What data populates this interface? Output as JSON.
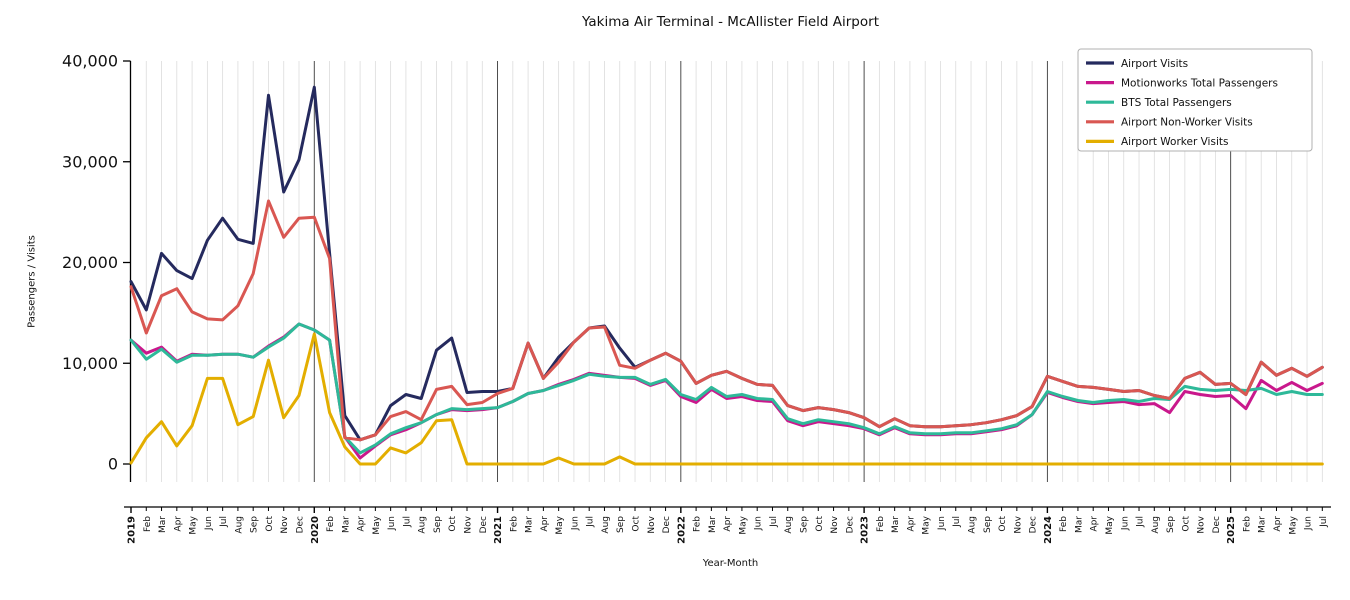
{
  "title": "Yakima Air Terminal - McAllister Field Airport",
  "xlabel": "Year-Month",
  "ylabel": "Passengers / Visits",
  "axis_color": "#000000",
  "grid_color": "#dcdcdc",
  "year_line_color": "#3a3a3a",
  "legend": {
    "position": "top-right",
    "border_color": "#b0b0b0",
    "background": "#ffffff"
  },
  "chart_data": {
    "type": "line",
    "title": "Yakima Air Terminal - McAllister Field Airport",
    "xlabel": "Year-Month",
    "ylabel": "Passengers / Visits",
    "ylim": [
      0,
      40000
    ],
    "grid": "vertical monthly gridlines, darker line at each January",
    "legend_position": "top-right",
    "y_ticks": [
      0,
      10000,
      20000,
      30000,
      40000
    ],
    "y_tick_labels": [
      "0",
      "10,000",
      "20,000",
      "30,000",
      "40,000"
    ],
    "x_labels": [
      "2019",
      "Feb",
      "Mar",
      "Apr",
      "May",
      "Jun",
      "Jul",
      "Aug",
      "Sep",
      "Oct",
      "Nov",
      "Dec",
      "2020",
      "Feb",
      "Mar",
      "Apr",
      "May",
      "Jun",
      "Jul",
      "Aug",
      "Sep",
      "Oct",
      "Nov",
      "Dec",
      "2021",
      "Feb",
      "Mar",
      "Apr",
      "May",
      "Jun",
      "Jul",
      "Aug",
      "Sep",
      "Oct",
      "Nov",
      "Dec",
      "2022",
      "Feb",
      "Mar",
      "Apr",
      "May",
      "Jun",
      "Jul",
      "Aug",
      "Sep",
      "Oct",
      "Nov",
      "Dec",
      "2023",
      "Feb",
      "Mar",
      "Apr",
      "May",
      "Jun",
      "Jul",
      "Aug",
      "Sep",
      "Oct",
      "Nov",
      "Dec",
      "2024",
      "Feb",
      "Mar",
      "Apr",
      "May",
      "Jun",
      "Jul",
      "Aug",
      "Sep",
      "Oct",
      "Nov",
      "Dec",
      "2025",
      "Feb",
      "Mar",
      "Apr",
      "May",
      "Jun",
      "Jul"
    ],
    "series": [
      {
        "name": "Airport Visits",
        "color": "#252a5e",
        "values": [
          18100,
          15300,
          20900,
          19200,
          18400,
          22200,
          24400,
          22300,
          21900,
          36600,
          27000,
          30200,
          37400,
          20900,
          4800,
          2400,
          2900,
          5800,
          6900,
          6500,
          11300,
          12500,
          7100,
          7200,
          7200,
          7500,
          12000,
          8500,
          10600,
          12100,
          13500,
          13700,
          11500,
          9600,
          10300,
          11000,
          10200,
          8000,
          8800,
          9200,
          8500,
          7900,
          7800,
          5800,
          5300,
          5600,
          5400,
          5100,
          4600,
          3700,
          4500,
          3800,
          3700,
          3700,
          3800,
          3900,
          4100,
          4400,
          4800,
          5700,
          8700,
          8200,
          7700,
          7600,
          7400,
          7200,
          7300,
          6800,
          6500,
          8500,
          9100,
          7900,
          8000,
          6900,
          10100,
          8800,
          9500,
          8700,
          9600
        ]
      },
      {
        "name": "Motionworks Total Passengers",
        "color": "#c9188c",
        "values": [
          12300,
          11000,
          11600,
          10200,
          10900,
          10800,
          10900,
          10900,
          10600,
          11700,
          12600,
          13900,
          13300,
          12300,
          2700,
          600,
          1800,
          2900,
          3400,
          4100,
          4900,
          5400,
          5300,
          5400,
          5600,
          6200,
          7000,
          7300,
          7900,
          8400,
          9000,
          8800,
          8600,
          8500,
          7800,
          8300,
          6700,
          6100,
          7400,
          6500,
          6700,
          6300,
          6200,
          4300,
          3800,
          4200,
          4000,
          3800,
          3500,
          2900,
          3600,
          3000,
          2900,
          2900,
          3000,
          3000,
          3200,
          3400,
          3800,
          4900,
          7100,
          6600,
          6200,
          6000,
          6100,
          6200,
          5900,
          6000,
          5100,
          7200,
          6900,
          6700,
          6800,
          5500,
          8300,
          7300,
          8100,
          7300,
          8000
        ]
      },
      {
        "name": "BTS Total Passengers",
        "color": "#2eb999",
        "values": [
          12300,
          10400,
          11400,
          10100,
          10800,
          10800,
          10900,
          10900,
          10600,
          11600,
          12500,
          13900,
          13300,
          12300,
          2700,
          1100,
          1900,
          3000,
          3600,
          4100,
          4900,
          5500,
          5400,
          5500,
          5600,
          6200,
          7000,
          7300,
          7800,
          8300,
          8900,
          8700,
          8600,
          8600,
          7900,
          8400,
          6900,
          6400,
          7600,
          6700,
          6900,
          6500,
          6400,
          4500,
          4000,
          4400,
          4200,
          4000,
          3600,
          3000,
          3700,
          3100,
          3000,
          3000,
          3100,
          3100,
          3300,
          3500,
          3900,
          4900,
          7200,
          6700,
          6300,
          6100,
          6300,
          6400,
          6200,
          6500,
          6400,
          7700,
          7400,
          7300,
          7400,
          7300,
          7500,
          6900,
          7200,
          6900,
          6900
        ]
      },
      {
        "name": "Airport Non-Worker Visits",
        "color": "#d95752",
        "values": [
          17600,
          13000,
          16700,
          17400,
          15100,
          14400,
          14300,
          15700,
          18900,
          26100,
          22500,
          24400,
          24500,
          20400,
          2600,
          2400,
          2900,
          4700,
          5200,
          4400,
          7400,
          7700,
          5900,
          6100,
          7000,
          7500,
          12000,
          8500,
          10100,
          12100,
          13500,
          13600,
          9800,
          9500,
          10300,
          11000,
          10200,
          8000,
          8800,
          9200,
          8500,
          7900,
          7800,
          5800,
          5300,
          5600,
          5400,
          5100,
          4600,
          3700,
          4500,
          3800,
          3700,
          3700,
          3800,
          3900,
          4100,
          4400,
          4800,
          5700,
          8700,
          8200,
          7700,
          7600,
          7400,
          7200,
          7300,
          6800,
          6500,
          8500,
          9100,
          7900,
          8000,
          6900,
          10100,
          8800,
          9500,
          8700,
          9600
        ]
      },
      {
        "name": "Airport Worker Visits",
        "color": "#e3ae00",
        "values": [
          100,
          2600,
          4200,
          1800,
          3800,
          8500,
          8500,
          3900,
          4700,
          10300,
          4600,
          6800,
          12900,
          5100,
          1700,
          0,
          0,
          1600,
          1100,
          2100,
          4300,
          4400,
          0,
          0,
          0,
          0,
          0,
          0,
          600,
          0,
          0,
          0,
          700,
          0,
          0,
          0,
          0,
          0,
          0,
          0,
          0,
          0,
          0,
          0,
          0,
          0,
          0,
          0,
          0,
          0,
          0,
          0,
          0,
          0,
          0,
          0,
          0,
          0,
          0,
          0,
          0,
          0,
          0,
          0,
          0,
          0,
          0,
          0,
          0,
          0,
          0,
          0,
          0,
          0,
          0,
          0,
          0,
          0,
          0
        ]
      }
    ]
  }
}
